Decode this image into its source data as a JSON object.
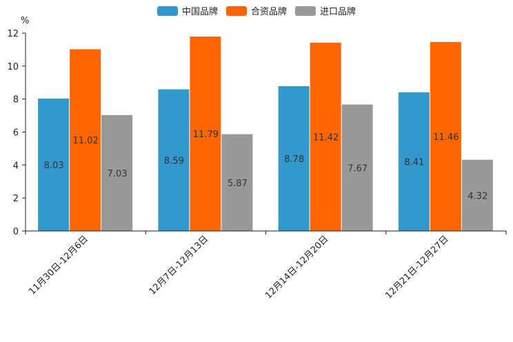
{
  "chart_data": {
    "type": "bar",
    "title": "",
    "xlabel": "",
    "ylabel": "%",
    "ylim": [
      0,
      12
    ],
    "yticks": [
      0,
      2,
      4,
      6,
      8,
      10,
      12
    ],
    "grid": false,
    "legend_position": "top",
    "categories": [
      "11月30日-12月6日",
      "12月7日-12月13日",
      "12月14日-12月20日",
      "12月21日-12月27日"
    ],
    "series": [
      {
        "name": "中国品牌",
        "color": "#3399CC",
        "values": [
          8.03,
          8.59,
          8.78,
          8.41
        ]
      },
      {
        "name": "合资品牌",
        "color": "#FF6600",
        "values": [
          11.02,
          11.79,
          11.42,
          11.46
        ]
      },
      {
        "name": "进口品牌",
        "color": "#999999",
        "values": [
          7.03,
          5.87,
          7.67,
          4.32
        ]
      }
    ]
  }
}
